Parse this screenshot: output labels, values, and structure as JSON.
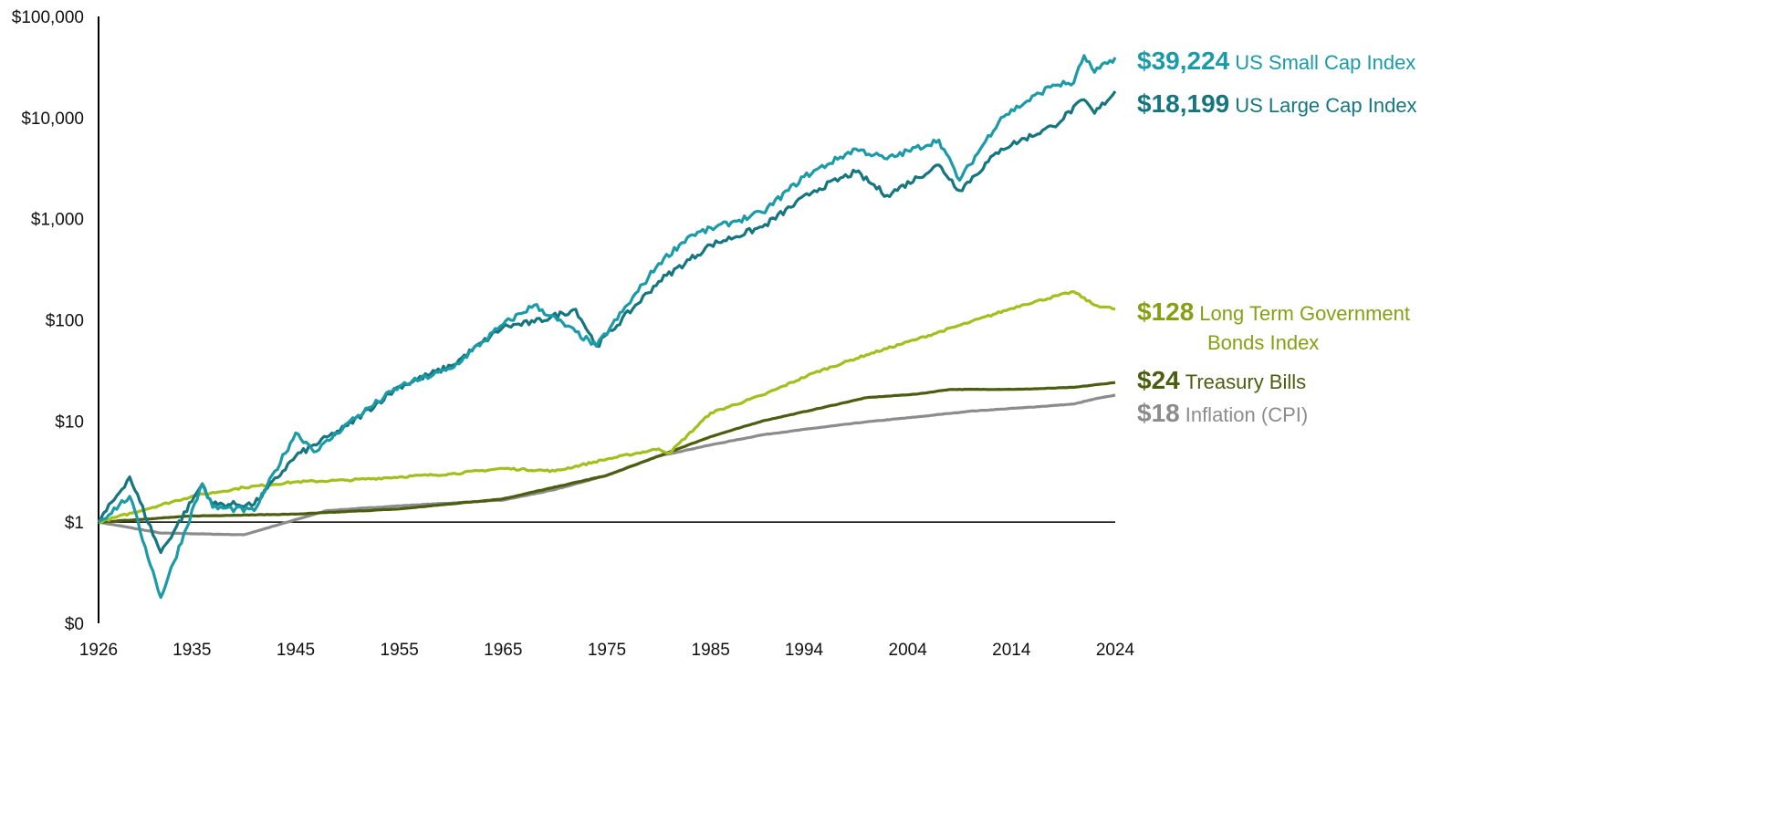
{
  "chart_data": {
    "type": "line",
    "title": "",
    "xlabel": "",
    "ylabel": "",
    "y_scale": "log",
    "ylim": [
      0.1,
      100000
    ],
    "xlim": [
      1926,
      2024
    ],
    "grid": false,
    "baseline_value": 1,
    "y_ticks": [
      {
        "value": 0.1,
        "label": "$0"
      },
      {
        "value": 1,
        "label": "$1"
      },
      {
        "value": 10,
        "label": "$10"
      },
      {
        "value": 100,
        "label": "$100"
      },
      {
        "value": 1000,
        "label": "$1,000"
      },
      {
        "value": 10000,
        "label": "$10,000"
      },
      {
        "value": 100000,
        "label": "$100,000"
      }
    ],
    "x_ticks": [
      {
        "value": 1926,
        "label": "1926"
      },
      {
        "value": 1935,
        "label": "1935"
      },
      {
        "value": 1945,
        "label": "1945"
      },
      {
        "value": 1955,
        "label": "1955"
      },
      {
        "value": 1965,
        "label": "1965"
      },
      {
        "value": 1975,
        "label": "1975"
      },
      {
        "value": 1985,
        "label": "1985"
      },
      {
        "value": 1994,
        "label": "1994"
      },
      {
        "value": 2004,
        "label": "2004"
      },
      {
        "value": 2014,
        "label": "2014"
      },
      {
        "value": 2024,
        "label": "2024"
      }
    ],
    "legend_placement": "right",
    "series": [
      {
        "name": "US Small Cap Index",
        "end_label": "$39,224",
        "color": "#1b9ba7",
        "x": [
          1926,
          1929,
          1932,
          1936,
          1937,
          1941,
          1945,
          1947,
          1950,
          1955,
          1960,
          1965,
          1968,
          1974,
          1980,
          1983,
          1987,
          1990,
          1994,
          1999,
          2002,
          2007,
          2009,
          2013,
          2018,
          2020,
          2021,
          2022,
          2024
        ],
        "y": [
          1,
          1.8,
          0.18,
          2.4,
          1.4,
          1.3,
          7.6,
          5,
          9.5,
          22,
          33,
          90,
          140,
          55,
          360,
          680,
          920,
          1150,
          2600,
          4900,
          3900,
          6000,
          2400,
          10000,
          21000,
          22000,
          41000,
          28000,
          39224
        ]
      },
      {
        "name": "US Large Cap Index",
        "end_label": "$18,199",
        "color": "#157680",
        "x": [
          1926,
          1929,
          1932,
          1936,
          1937,
          1941,
          1945,
          1950,
          1955,
          1960,
          1965,
          1968,
          1972,
          1974,
          1980,
          1985,
          1990,
          1995,
          1999,
          2002,
          2007,
          2009,
          2013,
          2018,
          2021,
          2022,
          2024
        ],
        "y": [
          1,
          2.8,
          0.5,
          2.4,
          1.5,
          1.5,
          4.5,
          9,
          22,
          35,
          85,
          95,
          127,
          55,
          240,
          550,
          830,
          1900,
          2900,
          1700,
          3400,
          1900,
          4900,
          8200,
          15000,
          11000,
          18199
        ]
      },
      {
        "name": "Long Term Government Bonds Index",
        "end_label": "$128",
        "color": "#a3bf1c",
        "x": [
          1926,
          1935,
          1940,
          1945,
          1950,
          1955,
          1960,
          1965,
          1970,
          1975,
          1980,
          1981,
          1985,
          1990,
          1995,
          2000,
          2005,
          2010,
          2015,
          2020,
          2022,
          2024
        ],
        "y": [
          1,
          1.8,
          2.2,
          2.5,
          2.6,
          2.8,
          3.0,
          3.4,
          3.2,
          4.2,
          5.3,
          4.8,
          12,
          18,
          30,
          45,
          65,
          95,
          140,
          190,
          140,
          128
        ]
      },
      {
        "name": "Treasury Bills",
        "end_label": "$24",
        "color": "#4b5e0f",
        "x": [
          1926,
          1935,
          1945,
          1955,
          1965,
          1975,
          1980,
          1985,
          1990,
          1995,
          2000,
          2005,
          2008,
          2015,
          2020,
          2024
        ],
        "y": [
          1,
          1.15,
          1.2,
          1.35,
          1.7,
          2.9,
          4.5,
          7,
          10,
          13,
          17,
          18.5,
          20.5,
          20.6,
          21.5,
          24
        ]
      },
      {
        "name": "Inflation (CPI)",
        "end_label": "$18",
        "color": "#8c8c8c",
        "x": [
          1926,
          1932,
          1940,
          1943,
          1948,
          1955,
          1965,
          1970,
          1975,
          1980,
          1985,
          1990,
          1995,
          2000,
          2005,
          2010,
          2015,
          2020,
          2022,
          2024
        ],
        "y": [
          1,
          0.78,
          0.75,
          0.92,
          1.3,
          1.45,
          1.65,
          2.1,
          2.9,
          4.5,
          5.8,
          7.3,
          8.5,
          9.8,
          11,
          12.5,
          13.5,
          14.7,
          16.5,
          18
        ]
      }
    ]
  }
}
